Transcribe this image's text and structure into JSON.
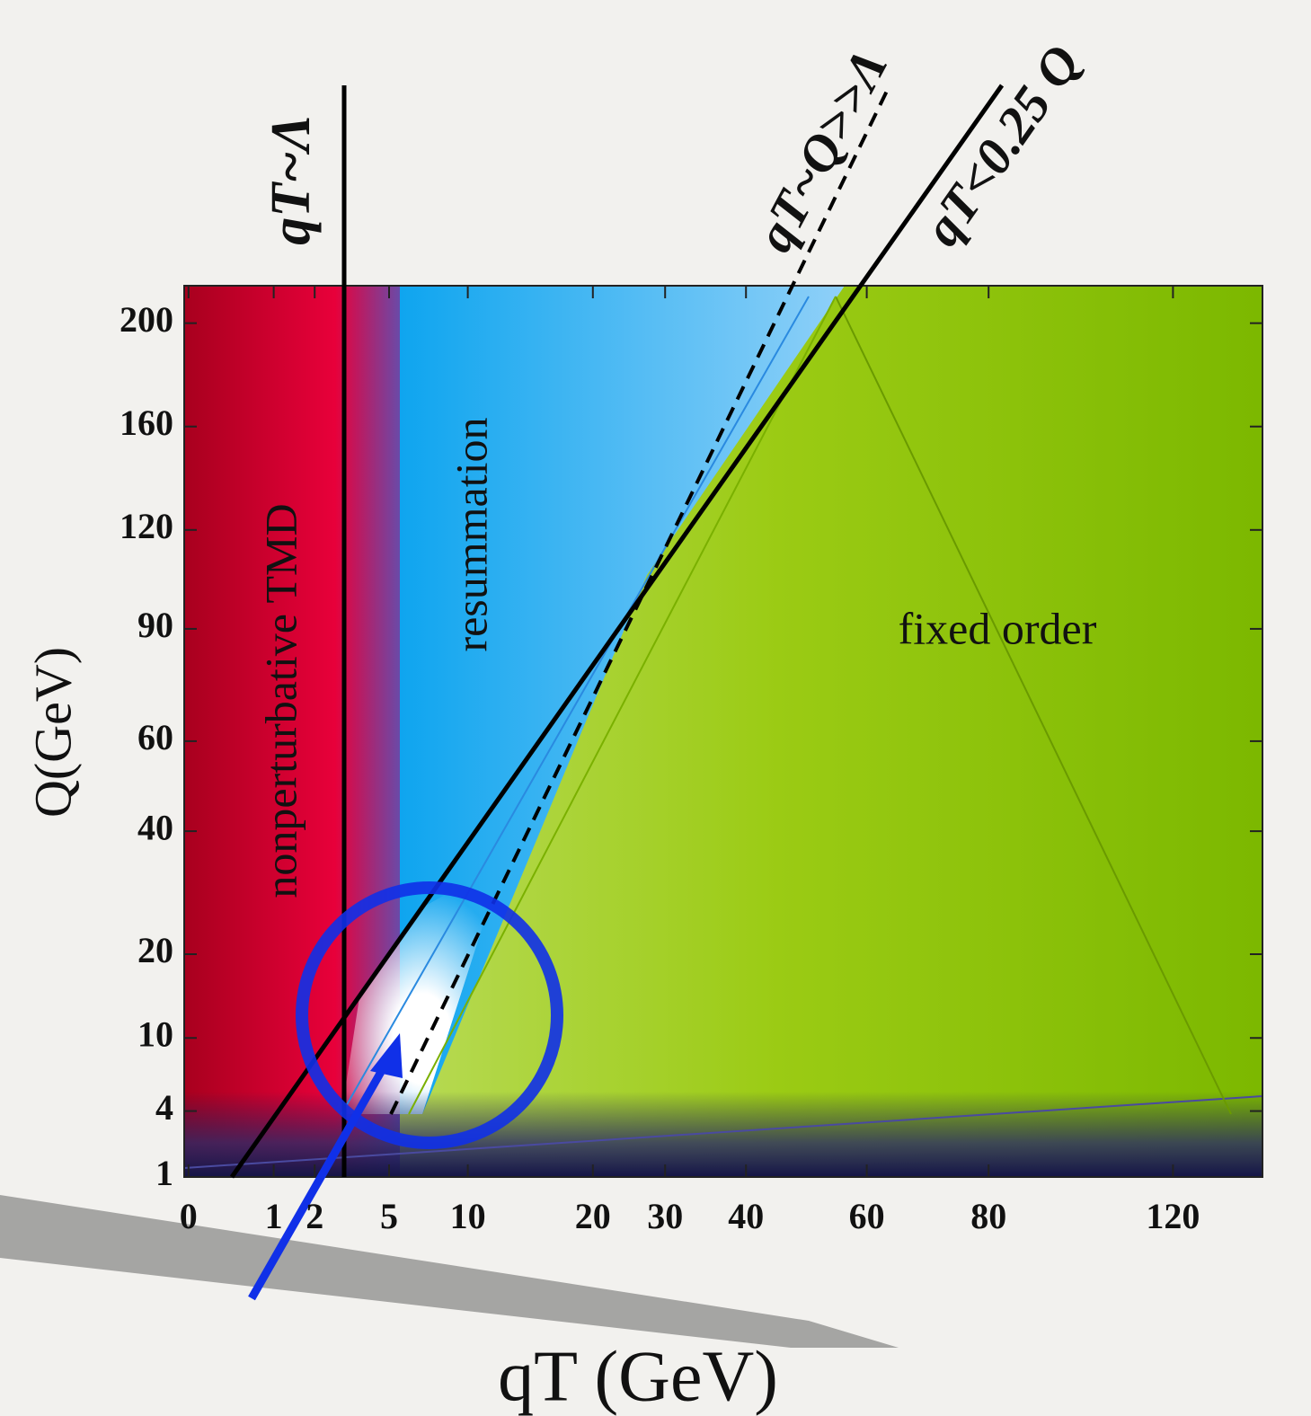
{
  "chart_data": {
    "type": "region",
    "xlabel": "qT (GeV)",
    "ylabel": "Q(GeV)",
    "xlim": [
      0,
      130
    ],
    "ylim": [
      1,
      215
    ],
    "xticks": [
      0,
      1,
      2,
      5,
      10,
      20,
      30,
      40,
      60,
      80,
      120
    ],
    "yticks": [
      1,
      4,
      10,
      20,
      40,
      60,
      90,
      120,
      160,
      200
    ],
    "regions": [
      {
        "label": "nonperturbative TMD",
        "color": "#d0002e"
      },
      {
        "label": "resummation",
        "color": "#1aa4ee"
      },
      {
        "label": "fixed order",
        "color": "#94c400"
      }
    ],
    "lines": [
      {
        "label": "qT~Λ",
        "style": "solid"
      },
      {
        "label": "qT~Q>>Λ",
        "style": "dashed"
      },
      {
        "label": "qT<0.25 Q",
        "style": "solid"
      }
    ]
  }
}
